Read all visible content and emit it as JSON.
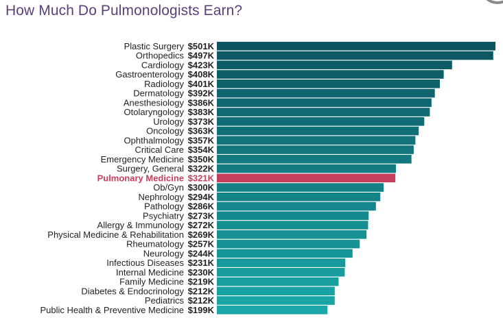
{
  "title": "How Much Do Pulmonologists Earn?",
  "colors": {
    "title": "#5a3f78",
    "bar_top": "#0d5560",
    "bar_bottom": "#1aa8a8",
    "highlight": "#c63e5b",
    "label": "#222222"
  },
  "chart_data": {
    "type": "bar",
    "orientation": "horizontal",
    "title": "How Much Do Pulmonologists Earn?",
    "categories": [
      "Plastic Surgery",
      "Orthopedics",
      "Cardiology",
      "Gastroenterology",
      "Radiology",
      "Dermatology",
      "Anesthesiology",
      "Otolaryngology",
      "Urology",
      "Oncology",
      "Ophthalmology",
      "Critical Care",
      "Emergency Medicine",
      "Surgery, General",
      "Pulmonary Medicine",
      "Ob/Gyn",
      "Nephrology",
      "Pathology",
      "Psychiatry",
      "Allergy & Immunology",
      "Physical Medicine & Rehabilitation",
      "Rheumatology",
      "Neurology",
      "Infectious Diseases",
      "Internal Medicine",
      "Family Medicine",
      "Diabetes & Endocrinology",
      "Pediatrics",
      "Public Health & Preventive Medicine"
    ],
    "values": [
      501,
      497,
      423,
      408,
      401,
      392,
      386,
      383,
      373,
      363,
      357,
      354,
      350,
      322,
      321,
      300,
      294,
      286,
      273,
      272,
      269,
      257,
      244,
      231,
      230,
      219,
      212,
      212,
      199
    ],
    "value_labels": [
      "$501K",
      "$497K",
      "$423K",
      "$408K",
      "$401K",
      "$392K",
      "$386K",
      "$383K",
      "$373K",
      "$363K",
      "$357K",
      "$354K",
      "$350K",
      "$322K",
      "$321K",
      "$300K",
      "$294K",
      "$286K",
      "$273K",
      "$272K",
      "$269K",
      "$257K",
      "$244K",
      "$231K",
      "$230K",
      "$219K",
      "$212K",
      "$212K",
      "$199K"
    ],
    "units": "thousands USD",
    "highlight_category": "Pulmonary Medicine",
    "xlim": [
      0,
      501
    ],
    "grid": false,
    "legend": "none"
  }
}
